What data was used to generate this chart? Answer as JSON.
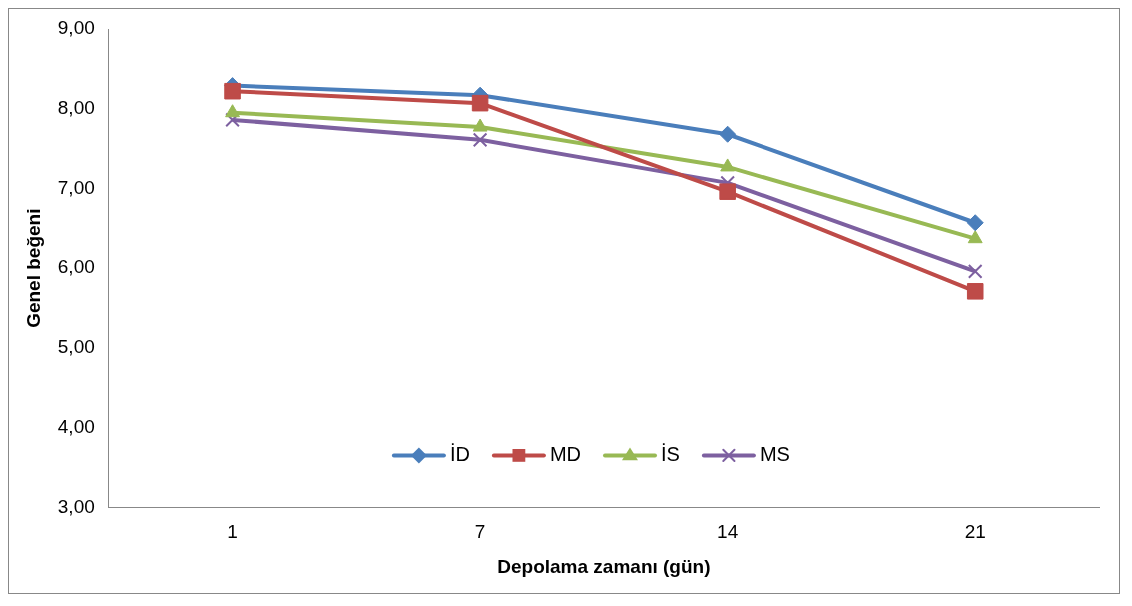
{
  "chart_data": {
    "type": "line",
    "xlabel": "Depolama zamanı (gün)",
    "ylabel": "Genel beğeni",
    "categories": [
      "1",
      "7",
      "14",
      "21"
    ],
    "ylim": [
      3,
      9
    ],
    "yticks": [
      {
        "value": 3,
        "label": "3,00"
      },
      {
        "value": 4,
        "label": "4,00"
      },
      {
        "value": 5,
        "label": "5,00"
      },
      {
        "value": 6,
        "label": "6,00"
      },
      {
        "value": 7,
        "label": "7,00"
      },
      {
        "value": 8,
        "label": "8,00"
      },
      {
        "value": 9,
        "label": "9,00"
      }
    ],
    "grid": false,
    "legend": "bottom",
    "line_style": "solid",
    "series": [
      {
        "name": "İD",
        "color": "#4a7ebb",
        "marker": "diamond",
        "values": [
          8.29,
          8.17,
          7.68,
          6.57
        ]
      },
      {
        "name": "MD",
        "color": "#be4b48",
        "marker": "square",
        "values": [
          8.22,
          8.07,
          6.96,
          5.71
        ]
      },
      {
        "name": "İS",
        "color": "#98b954",
        "marker": "triangle",
        "values": [
          7.95,
          7.77,
          7.27,
          6.37
        ]
      },
      {
        "name": "MS",
        "color": "#7d60a0",
        "marker": "cross",
        "values": [
          7.86,
          7.61,
          7.07,
          5.96
        ]
      }
    ]
  }
}
